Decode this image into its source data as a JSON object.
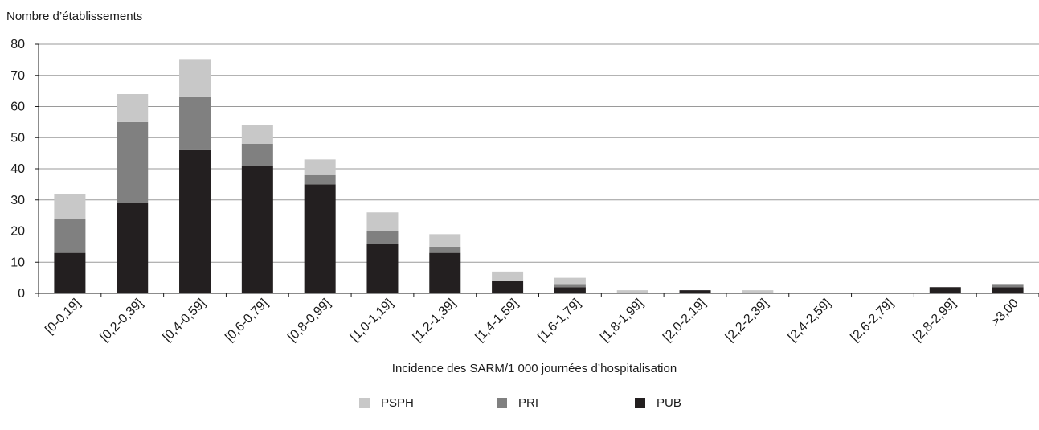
{
  "chart_data": {
    "type": "bar",
    "stacked": true,
    "ylabel": "Nombre d’établissements",
    "xlabel": "Incidence des SARM/1 000 journées d’hospitalisation",
    "ylim": [
      0,
      80
    ],
    "yticks": [
      0,
      10,
      20,
      30,
      40,
      50,
      60,
      70,
      80
    ],
    "grid": true,
    "legend_position": "bottom",
    "categories": [
      "[0-0,19]",
      "[0,2-0,39]",
      "[0,4-0,59]",
      "[0,6-0,79]",
      "[0,8-0,99]",
      "[1,0-1,19]",
      "[1,2-1,39]",
      "[1,4-1,59]",
      "[1,6-1,79]",
      "[1,8-1,99]",
      "[2,0-2,19]",
      "[2,2-2,39]",
      "[2,4-2,59]",
      "[2,6-2,79]",
      "[2,8-2,99]",
      ">3,00"
    ],
    "series": [
      {
        "name": "PUB",
        "color": "#231f20",
        "values": [
          13,
          29,
          46,
          41,
          35,
          16,
          13,
          4,
          2,
          0,
          1,
          0,
          0,
          0,
          2,
          2
        ]
      },
      {
        "name": "PRI",
        "color": "#808080",
        "values": [
          11,
          26,
          17,
          7,
          3,
          4,
          2,
          0,
          1,
          0,
          0,
          0,
          0,
          0,
          0,
          1
        ]
      },
      {
        "name": "PSPH",
        "color": "#c8c8c8",
        "values": [
          8,
          9,
          12,
          6,
          5,
          6,
          4,
          3,
          2,
          1,
          0,
          1,
          0,
          0,
          0,
          0
        ]
      }
    ],
    "legend_order": [
      "PSPH",
      "PRI",
      "PUB"
    ]
  }
}
